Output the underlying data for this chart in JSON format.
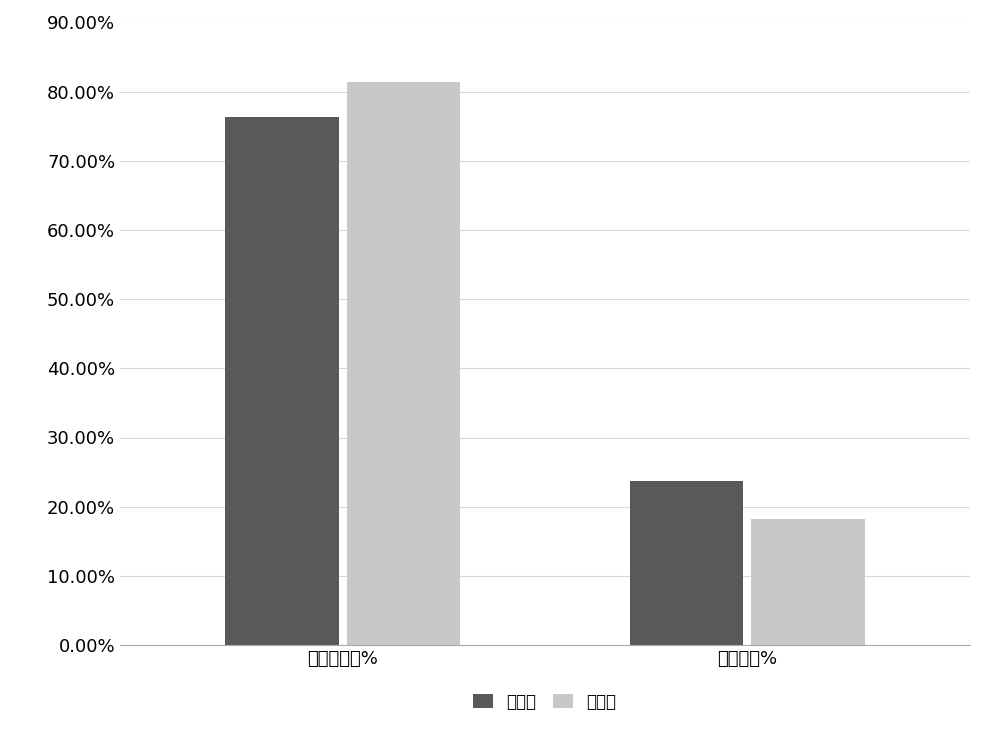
{
  "categories": [
    "荷电保持率%",
    "自放电率%"
  ],
  "series": [
    {
      "name": "单隔膜",
      "values": [
        0.764,
        0.237
      ],
      "color": "#595959"
    },
    {
      "name": "双隔膜",
      "values": [
        0.814,
        0.182
      ],
      "color": "#c8c8c8"
    }
  ],
  "ylim": [
    0,
    0.9
  ],
  "yticks": [
    0.0,
    0.1,
    0.2,
    0.3,
    0.4,
    0.5,
    0.6,
    0.7,
    0.8,
    0.9
  ],
  "bar_width": 0.28,
  "background_color": "#ffffff",
  "plot_background_color": "#ffffff",
  "outer_border_color": "#d0d0d0",
  "grid_color": "#d8d8d8",
  "tick_fontsize": 13,
  "label_fontsize": 13,
  "legend_fontsize": 12
}
